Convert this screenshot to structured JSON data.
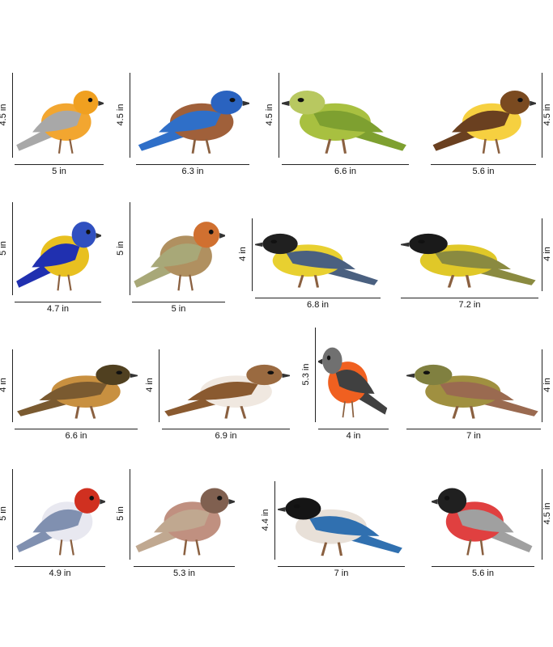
{
  "birds": [
    {
      "name": "orange-grey-bird",
      "width": "5 in",
      "height": "4.5 in",
      "colors": {
        "body": "#f2a630",
        "wing": "#a8a8a8",
        "head": "#f0a020"
      }
    },
    {
      "name": "bluebird",
      "width": "6.3 in",
      "height": "4.5 in",
      "colors": {
        "body": "#a0603a",
        "wing": "#2f6fc8",
        "head": "#2a63c0"
      }
    },
    {
      "name": "green-warbler",
      "width": "6.6 in",
      "height": "4.5 in",
      "colors": {
        "body": "#a8c040",
        "wing": "#7ea030",
        "head": "#b8c860"
      }
    },
    {
      "name": "yellow-brown-finch",
      "width": "5.6 in",
      "height": "4.5 in",
      "colors": {
        "body": "#f6d040",
        "wing": "#6a4020",
        "head": "#7a4a20"
      }
    },
    {
      "name": "blue-tit-flying",
      "width": "4.7 in",
      "height": "5 in",
      "colors": {
        "body": "#e8c020",
        "wing": "#2030b0",
        "head": "#3050c0"
      }
    },
    {
      "name": "robin-flying",
      "width": "5 in",
      "height": "5 in",
      "colors": {
        "body": "#b09060",
        "wing": "#a8a878",
        "head": "#d07030"
      }
    },
    {
      "name": "great-tit",
      "width": "6.8 in",
      "height": "4 in",
      "colors": {
        "body": "#e8d030",
        "wing": "#4a6080",
        "head": "#202020"
      }
    },
    {
      "name": "yellow-tit",
      "width": "7.2 in",
      "height": "4 in",
      "colors": {
        "body": "#e0c828",
        "wing": "#8a8a40",
        "head": "#1a1a1a"
      }
    },
    {
      "name": "thrush",
      "width": "6.6 in",
      "height": "4 in",
      "colors": {
        "body": "#c89040",
        "wing": "#7a5a30",
        "head": "#504020"
      }
    },
    {
      "name": "brown-finch",
      "width": "6.9 in",
      "height": "4 in",
      "colors": {
        "body": "#f0e8e0",
        "wing": "#8a5a30",
        "head": "#9a6a40"
      }
    },
    {
      "name": "red-robin",
      "width": "4 in",
      "height": "5.3 in",
      "colors": {
        "body": "#f06020",
        "wing": "#404040",
        "head": "#707070"
      }
    },
    {
      "name": "hummingbird-flower",
      "width": "7 in",
      "height": "4 in",
      "colors": {
        "body": "#a09040",
        "wing": "#9a6a50",
        "head": "#808040"
      }
    },
    {
      "name": "red-headed-bird",
      "width": "4.9 in",
      "height": "5 in",
      "colors": {
        "body": "#e8e8f0",
        "wing": "#8090b0",
        "head": "#d03020"
      }
    },
    {
      "name": "sparrow-flying",
      "width": "5.3 in",
      "height": "5 in",
      "colors": {
        "body": "#c09080",
        "wing": "#c0a890",
        "head": "#806050"
      }
    },
    {
      "name": "magpie",
      "width": "7 in",
      "height": "4.4 in",
      "colors": {
        "body": "#e8e0d8",
        "wing": "#3070b0",
        "head": "#151515"
      }
    },
    {
      "name": "bullfinch",
      "width": "5.6 in",
      "height": "4.5 in",
      "colors": {
        "body": "#e04040",
        "wing": "#a0a0a0",
        "head": "#202020"
      }
    }
  ]
}
